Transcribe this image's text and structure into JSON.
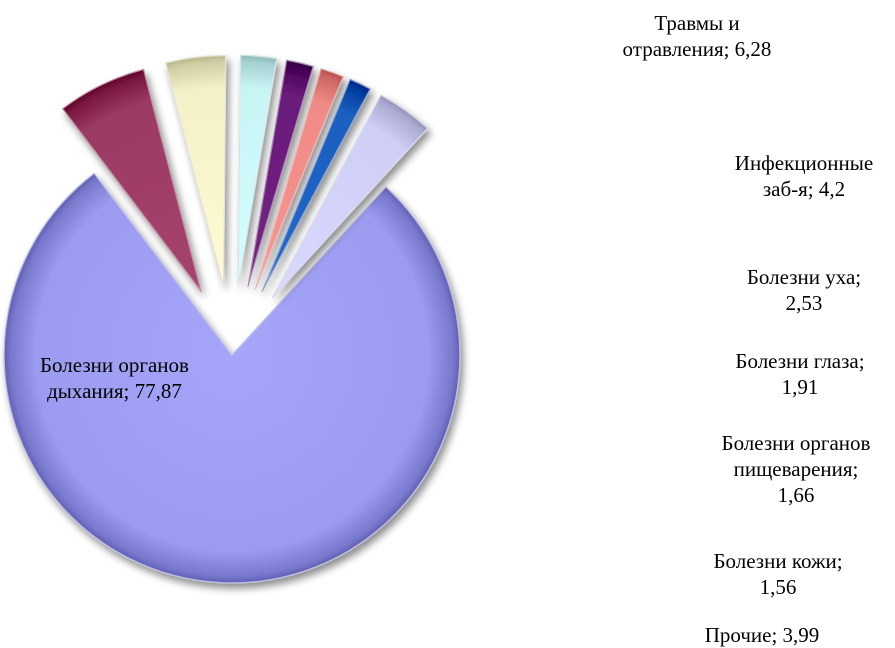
{
  "chart_data": {
    "type": "pie",
    "exploded": true,
    "style": "3d-bevel",
    "slices": [
      {
        "category": "Болезни органов дыхания",
        "value": 77.87,
        "label_line1": "Болезни органов",
        "label_line2": "дыхания; 77,87",
        "color": "#9b9bf0"
      },
      {
        "category": "Травмы и отравления",
        "value": 6.28,
        "label_line1": "Травмы и",
        "label_line2": "отравления; 6,28",
        "color": "#9b3a63"
      },
      {
        "category": "Инфекционные заб-я",
        "value": 4.2,
        "label_line1": "Инфекционные",
        "label_line2": "заб-я; 4,2",
        "color": "#f4f1c8"
      },
      {
        "category": "Болезни уха",
        "value": 2.53,
        "label_line1": "Болезни уха;",
        "label_line2": "2,53",
        "color": "#c9f4f6"
      },
      {
        "category": "Болезни глаза",
        "value": 1.91,
        "label_line1": "Болезни глаза;",
        "label_line2": "1,91",
        "color": "#6a1a7a"
      },
      {
        "category": "Болезни органов пищеварения",
        "value": 1.66,
        "label_line1": "Болезни органов",
        "label_line2": "пищеварения;",
        "label_line3": "1,66",
        "color": "#f08a86"
      },
      {
        "category": "Болезни кожи",
        "value": 1.56,
        "label_line1": "Болезни кожи;",
        "label_line2": "1,56",
        "color": "#1a5fc0"
      },
      {
        "category": "Прочие",
        "value": 3.99,
        "label_line1": "Прочие; 3,99",
        "color": "#cfcff6"
      }
    ]
  }
}
